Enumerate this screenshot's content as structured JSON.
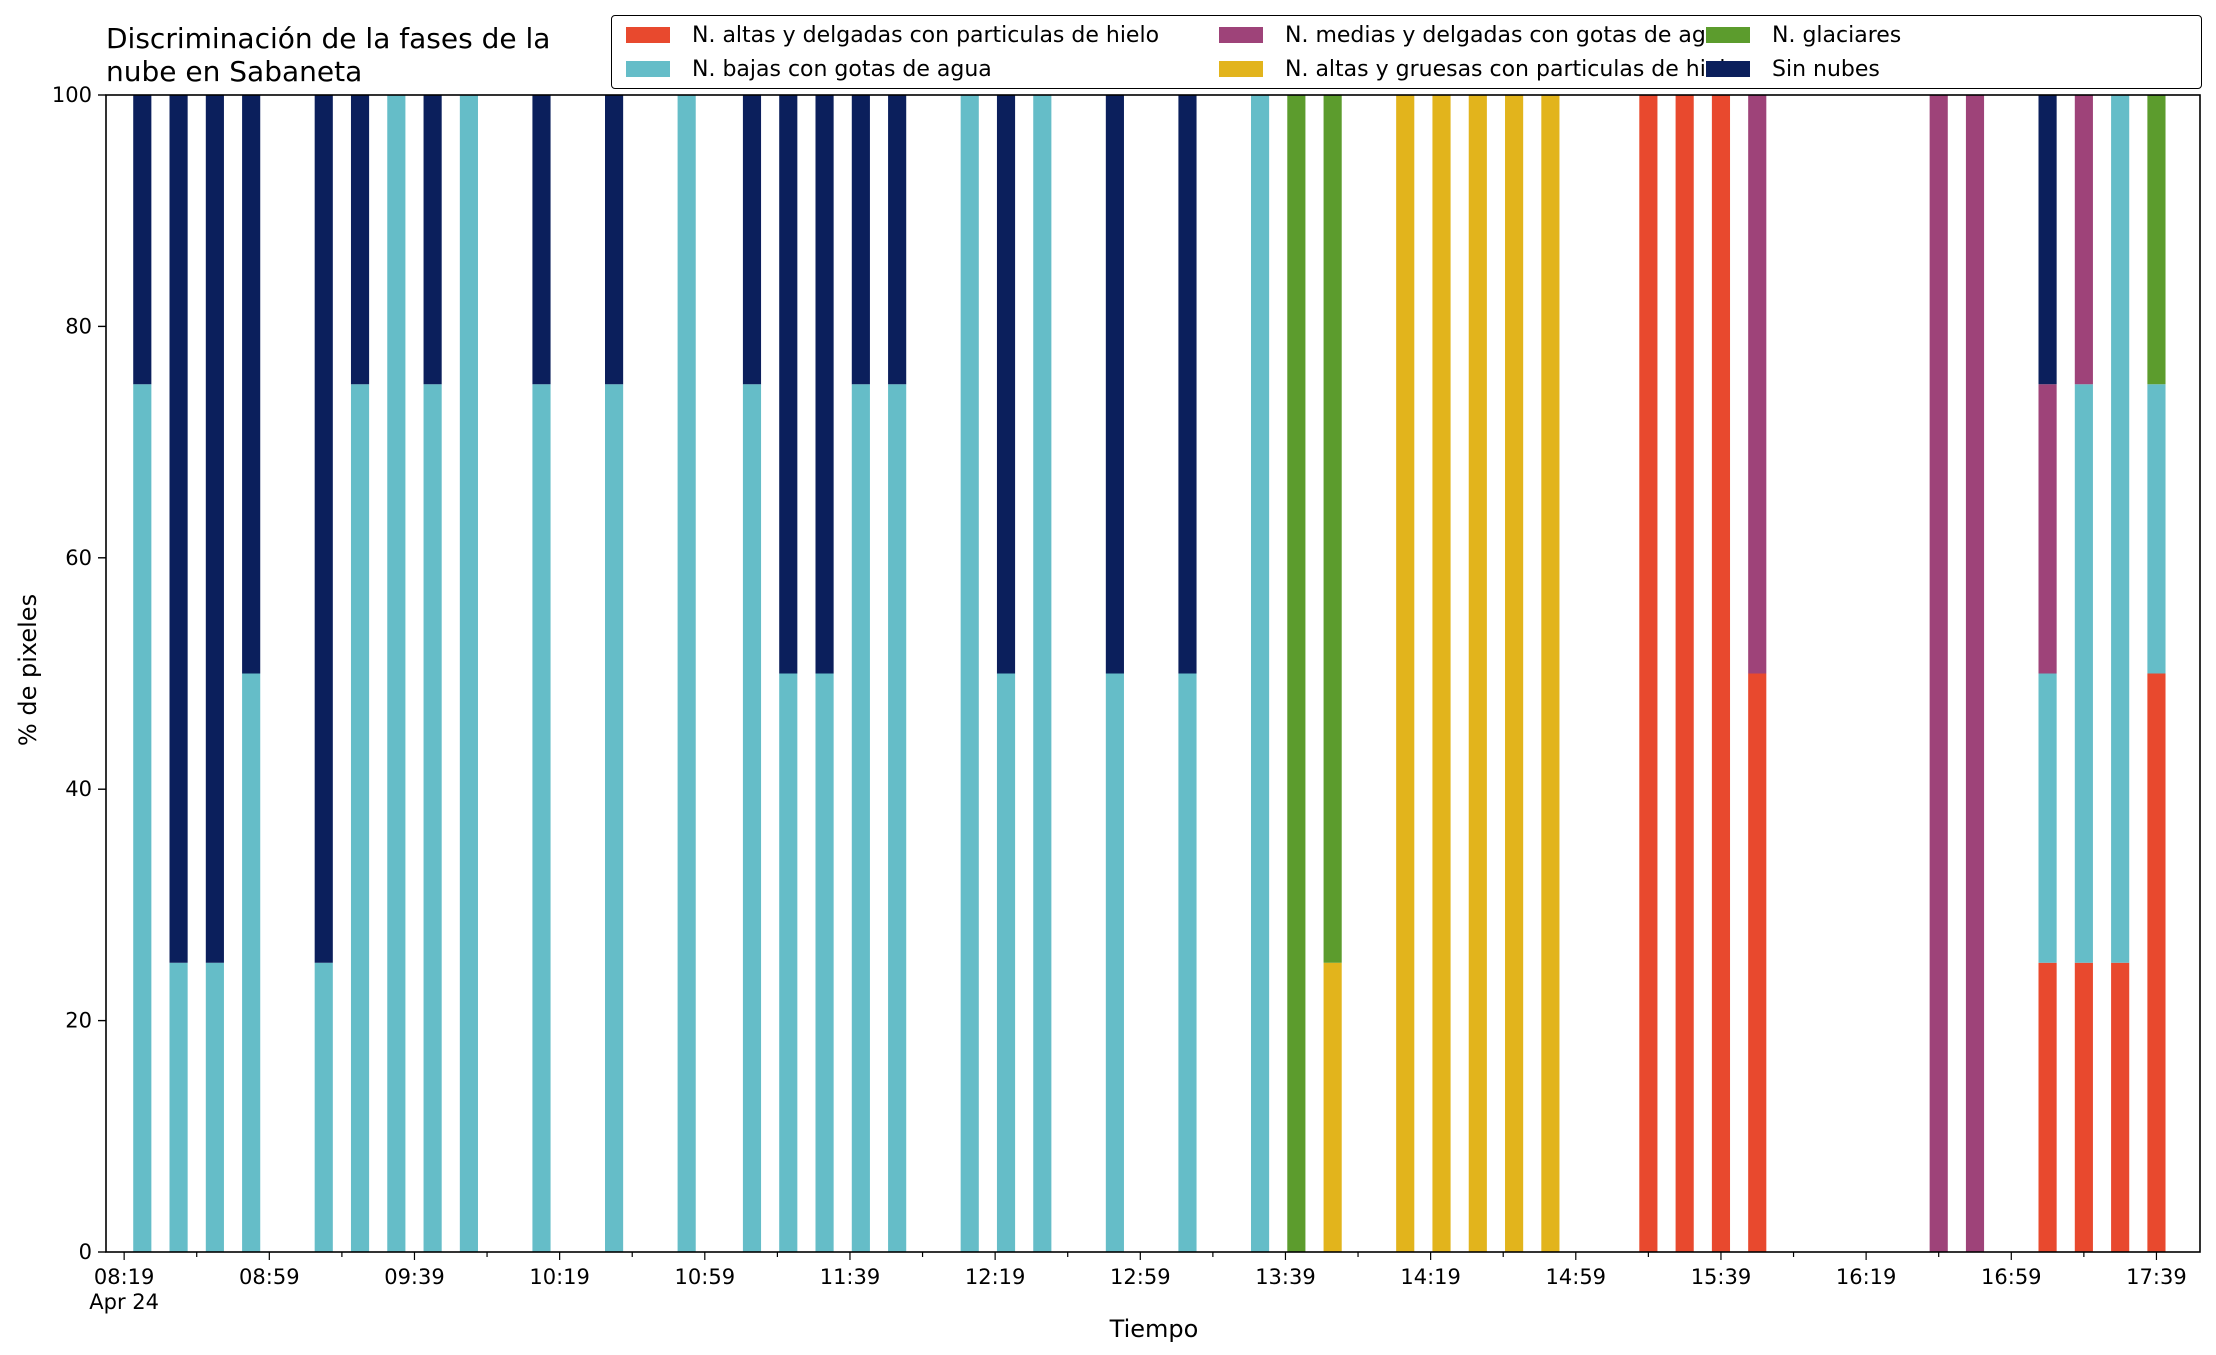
{
  "chart_data": {
    "type": "bar",
    "stacked": true,
    "title": "Discriminación de la fases de la\nnube en Sabaneta",
    "xlabel": "Tiempo",
    "ylabel": "% de pixeles",
    "ylim": [
      0,
      100
    ],
    "y_ticks": [
      "0",
      "20",
      "40",
      "60",
      "80",
      "100"
    ],
    "x_ticks": [
      {
        "label": "08:19",
        "sublabel": "Apr 24"
      },
      {
        "label": "08:59"
      },
      {
        "label": "09:39"
      },
      {
        "label": "10:19"
      },
      {
        "label": "10:59"
      },
      {
        "label": "11:39"
      },
      {
        "label": "12:19"
      },
      {
        "label": "12:59"
      },
      {
        "label": "13:39"
      },
      {
        "label": "14:19"
      },
      {
        "label": "14:59"
      },
      {
        "label": "15:39"
      },
      {
        "label": "16:19"
      },
      {
        "label": "16:59"
      },
      {
        "label": "17:39"
      }
    ],
    "x_range_minutes": [
      "08:14",
      "17:51"
    ],
    "legend_position": "top",
    "categories": [
      "08:24",
      "08:34",
      "08:44",
      "08:54",
      "09:14",
      "09:24",
      "09:34",
      "09:44",
      "09:54",
      "10:14",
      "10:34",
      "10:54",
      "11:12",
      "11:22",
      "11:32",
      "11:42",
      "11:52",
      "12:12",
      "12:22",
      "12:32",
      "12:52",
      "13:12",
      "13:32",
      "13:42",
      "13:52",
      "14:12",
      "14:22",
      "14:32",
      "14:42",
      "14:52",
      "15:19",
      "15:29",
      "15:39",
      "15:49",
      "16:39",
      "16:49",
      "17:09",
      "17:19",
      "17:29",
      "17:39"
    ],
    "series": [
      {
        "name": "N. altas y delgadas con particulas de hielo",
        "color": "#E8492E",
        "values": [
          0,
          0,
          0,
          0,
          0,
          0,
          0,
          0,
          0,
          0,
          0,
          0,
          0,
          0,
          0,
          0,
          0,
          0,
          0,
          0,
          0,
          0,
          0,
          0,
          0,
          0,
          0,
          0,
          0,
          0,
          100,
          100,
          100,
          50,
          0,
          0,
          25,
          25,
          25,
          50
        ]
      },
      {
        "name": "N. altas y gruesas con particulas de hielo",
        "color": "#E2B41C",
        "values": [
          0,
          0,
          0,
          0,
          0,
          0,
          0,
          0,
          0,
          0,
          0,
          0,
          0,
          0,
          0,
          0,
          0,
          0,
          0,
          0,
          0,
          0,
          0,
          0,
          25,
          100,
          100,
          100,
          100,
          100,
          0,
          0,
          0,
          0,
          0,
          0,
          0,
          0,
          0,
          0
        ]
      },
      {
        "name": "N. bajas con gotas de agua",
        "color": "#65BDC8",
        "values": [
          75,
          25,
          25,
          50,
          25,
          75,
          100,
          75,
          100,
          75,
          75,
          100,
          75,
          50,
          50,
          75,
          75,
          100,
          50,
          100,
          50,
          50,
          100,
          0,
          0,
          0,
          0,
          0,
          0,
          0,
          0,
          0,
          0,
          0,
          0,
          0,
          25,
          50,
          75,
          25
        ]
      },
      {
        "name": "N. glaciares",
        "color": "#5C9C2D",
        "values": [
          0,
          0,
          0,
          0,
          0,
          0,
          0,
          0,
          0,
          0,
          0,
          0,
          0,
          0,
          0,
          0,
          0,
          0,
          0,
          0,
          0,
          0,
          0,
          100,
          75,
          0,
          0,
          0,
          0,
          0,
          0,
          0,
          0,
          0,
          0,
          0,
          0,
          0,
          0,
          25
        ]
      },
      {
        "name": "N. medias y delgadas con gotas de agua",
        "color": "#9E4379",
        "values": [
          0,
          0,
          0,
          0,
          0,
          0,
          0,
          0,
          0,
          0,
          0,
          0,
          0,
          0,
          0,
          0,
          0,
          0,
          0,
          0,
          0,
          0,
          0,
          0,
          0,
          0,
          0,
          0,
          0,
          0,
          0,
          0,
          0,
          50,
          100,
          100,
          25,
          25,
          0,
          0
        ]
      },
      {
        "name": "Sin nubes",
        "color": "#0B1F5C",
        "values": [
          25,
          75,
          75,
          50,
          75,
          25,
          0,
          25,
          0,
          25,
          25,
          0,
          25,
          50,
          50,
          25,
          25,
          0,
          50,
          0,
          50,
          50,
          0,
          0,
          0,
          0,
          0,
          0,
          0,
          0,
          0,
          0,
          0,
          0,
          0,
          0,
          25,
          0,
          0,
          0
        ]
      }
    ]
  }
}
